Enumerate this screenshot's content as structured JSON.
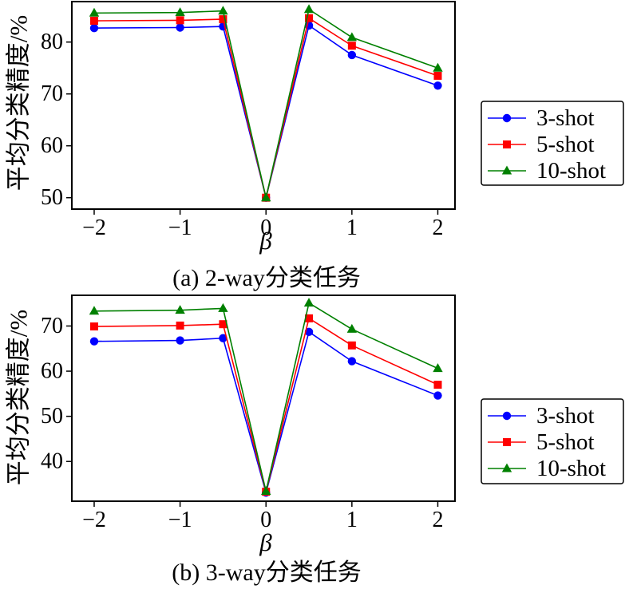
{
  "chart_data": [
    {
      "type": "line",
      "caption": "(a) 2-way分类任务",
      "xlabel": "β",
      "ylabel": "平均分类精度/%",
      "x": [
        -2,
        -1,
        -0.5,
        0,
        0.5,
        1,
        2
      ],
      "xlim": [
        -2.26,
        2.2
      ],
      "ylim": [
        47.8,
        87.8
      ],
      "xticks": [
        -2,
        -1,
        0,
        1,
        2
      ],
      "xtick_labels": [
        "−2",
        "−1",
        "0",
        "1",
        "2"
      ],
      "yticks": [
        50,
        60,
        70,
        80
      ],
      "ytick_labels": [
        "50",
        "60",
        "70",
        "80"
      ],
      "grid": false,
      "legend": "outside-right",
      "series": [
        {
          "name": "3-shot",
          "color": "#0000ff",
          "marker": "circle",
          "values": [
            82.7,
            82.8,
            83.0,
            50.0,
            83.2,
            77.5,
            71.6
          ]
        },
        {
          "name": "5-shot",
          "color": "#ff0000",
          "marker": "square",
          "values": [
            84.1,
            84.2,
            84.4,
            50.0,
            84.6,
            79.3,
            73.5
          ]
        },
        {
          "name": "10-shot",
          "color": "#008000",
          "marker": "triangle-up",
          "values": [
            85.6,
            85.7,
            86.0,
            50.0,
            86.3,
            80.9,
            75.0
          ]
        }
      ]
    },
    {
      "type": "line",
      "caption": "(b) 3-way分类任务",
      "xlabel": "β",
      "ylabel": "平均分类精度/%",
      "x": [
        -2,
        -1,
        -0.5,
        0,
        0.5,
        1,
        2
      ],
      "xlim": [
        -2.26,
        2.2
      ],
      "ylim": [
        31.2,
        76.8
      ],
      "xticks": [
        -2,
        -1,
        0,
        1,
        2
      ],
      "xtick_labels": [
        "−2",
        "−1",
        "0",
        "1",
        "2"
      ],
      "yticks": [
        40,
        50,
        60,
        70
      ],
      "ytick_labels": [
        "40",
        "50",
        "60",
        "70"
      ],
      "grid": false,
      "legend": "outside-right",
      "series": [
        {
          "name": "3-shot",
          "color": "#0000ff",
          "marker": "circle",
          "values": [
            66.6,
            66.8,
            67.3,
            33.1,
            68.7,
            62.2,
            54.6
          ]
        },
        {
          "name": "5-shot",
          "color": "#ff0000",
          "marker": "square",
          "values": [
            69.9,
            70.1,
            70.4,
            33.3,
            71.7,
            65.7,
            57.0
          ]
        },
        {
          "name": "10-shot",
          "color": "#008000",
          "marker": "triangle-up",
          "values": [
            73.3,
            73.5,
            73.9,
            33.4,
            75.1,
            69.3,
            60.6
          ]
        }
      ]
    }
  ]
}
